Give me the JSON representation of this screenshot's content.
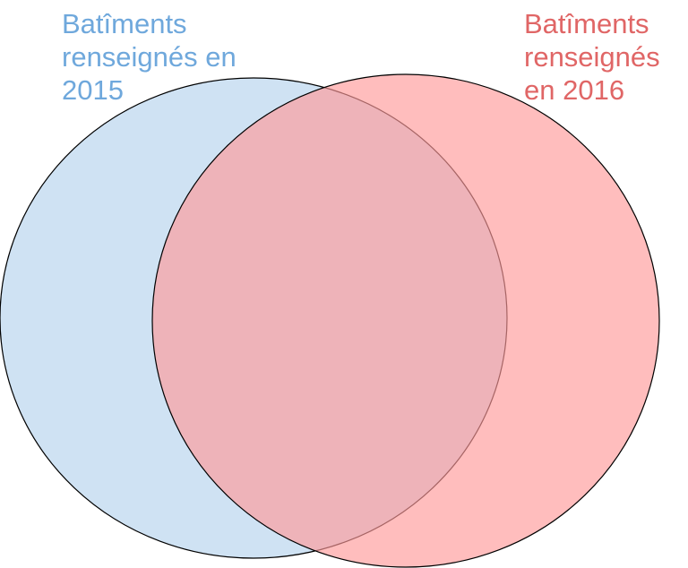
{
  "sets": [
    {
      "id": "set-2015",
      "label_lines": [
        "Batîments",
        "renseignés en",
        "2015"
      ],
      "fill": "#cfe2f3",
      "text_color": "#6fa8dc"
    },
    {
      "id": "set-2016",
      "label_lines": [
        "Batîments",
        "renseignés",
        "en 2016"
      ],
      "fill": "#ff9999",
      "text_color": "#e06666"
    }
  ],
  "stroke_color": "#000000"
}
